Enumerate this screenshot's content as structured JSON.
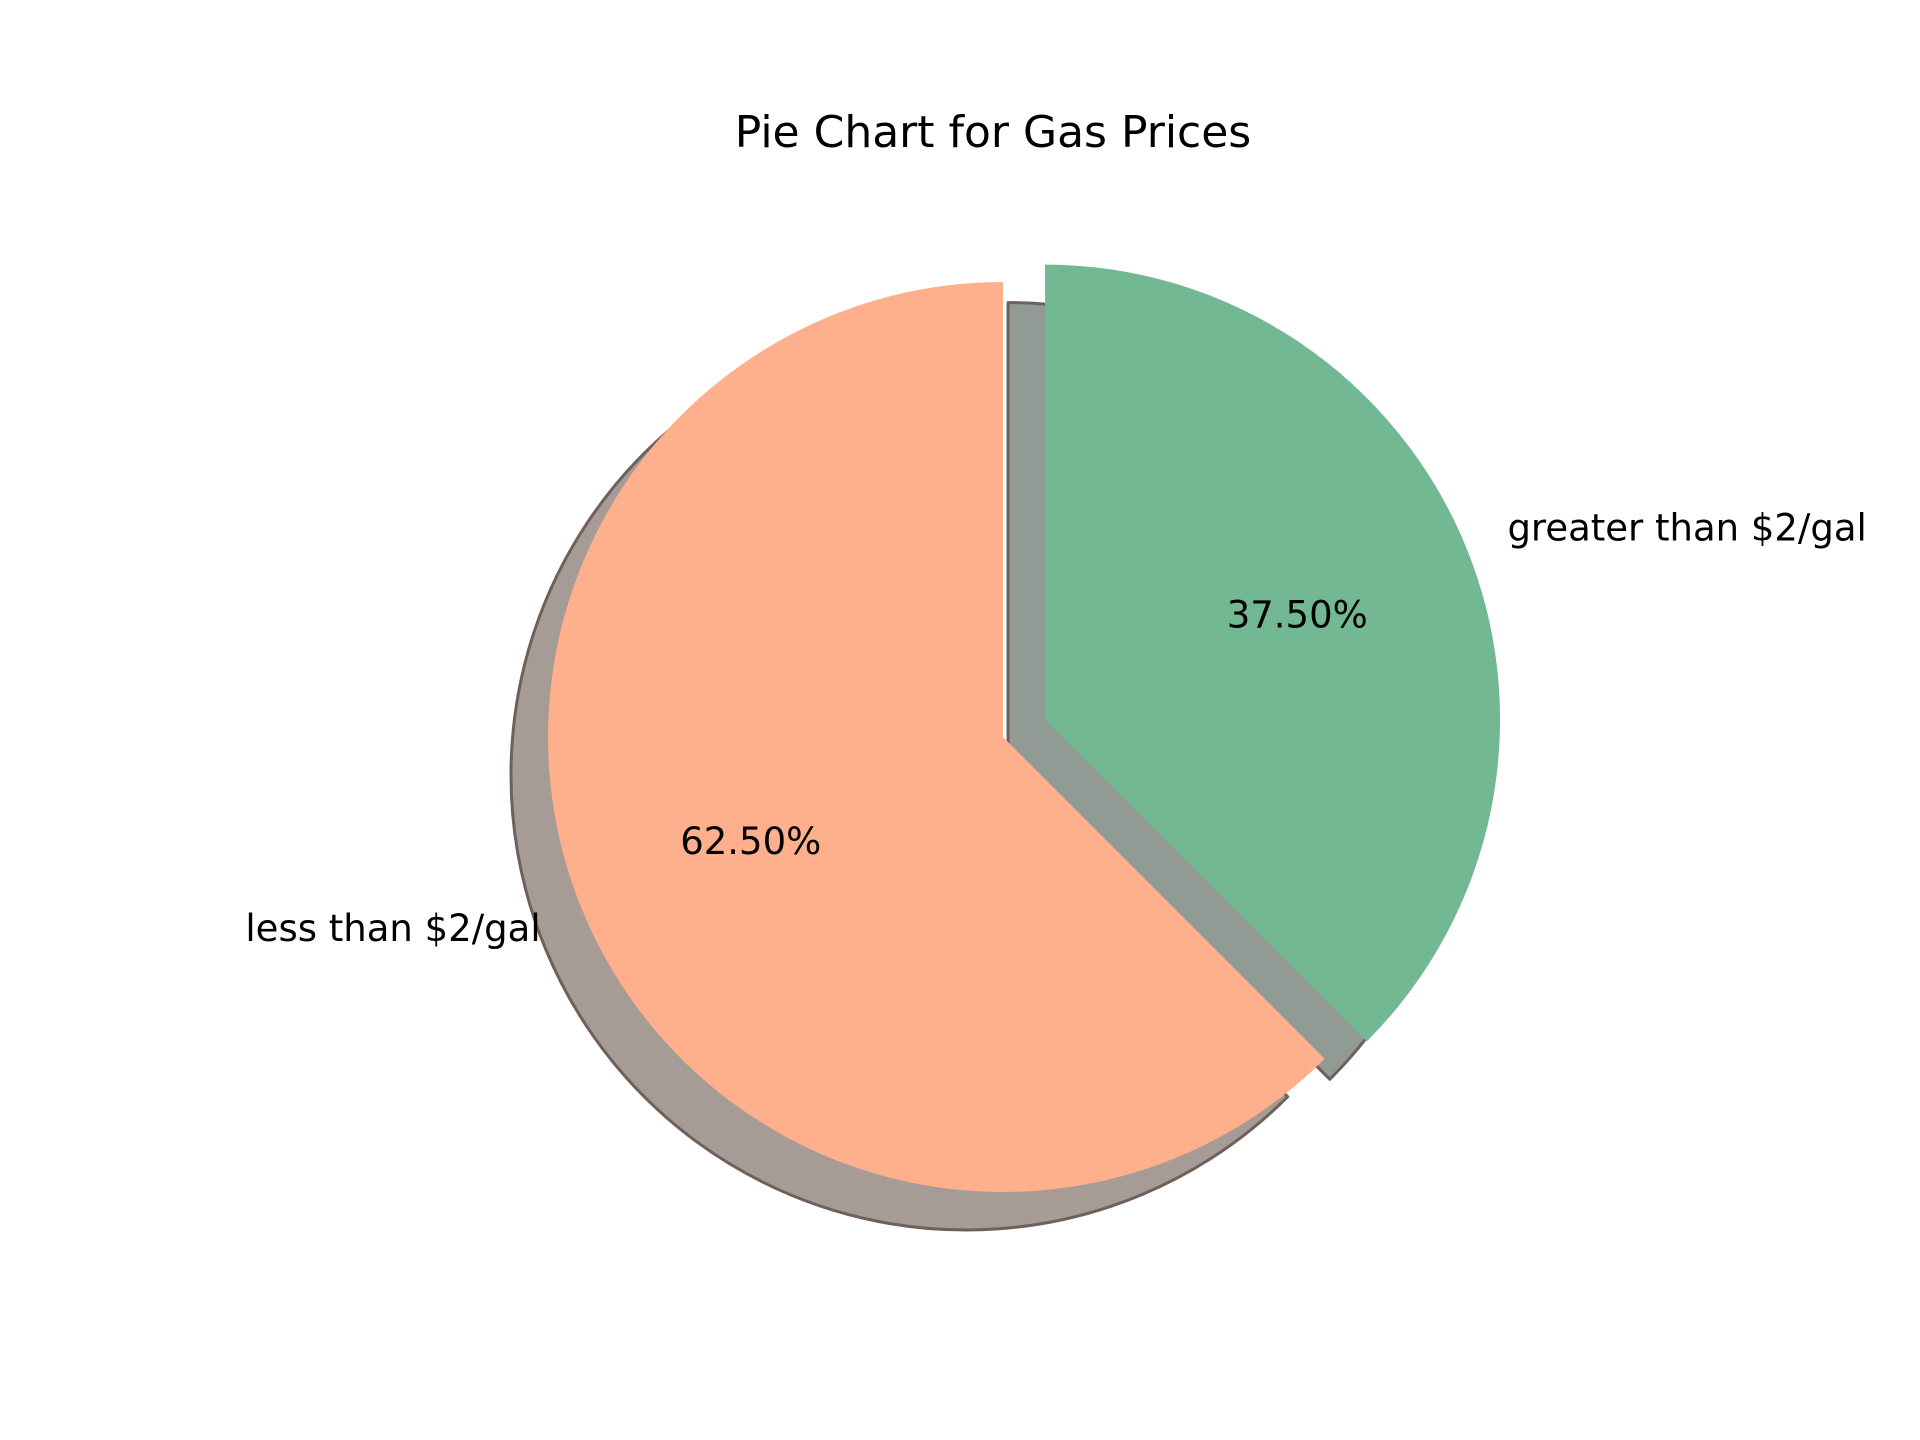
{
  "chart_data": {
    "type": "pie",
    "title": "Pie Chart for Gas Prices",
    "slices": [
      {
        "label": "greater than $2/gal",
        "value": 37.5,
        "pct_label": "37.50%",
        "color": "#71b893",
        "shadow_color": "#919a94",
        "exploded": true
      },
      {
        "label": "less than $2/gal",
        "value": 62.5,
        "pct_label": "62.50%",
        "color": "#feaf8c",
        "shadow_color": "#a69b95",
        "exploded": false
      }
    ],
    "start_angle_deg": 90,
    "direction": "clockwise",
    "shadow": true
  }
}
